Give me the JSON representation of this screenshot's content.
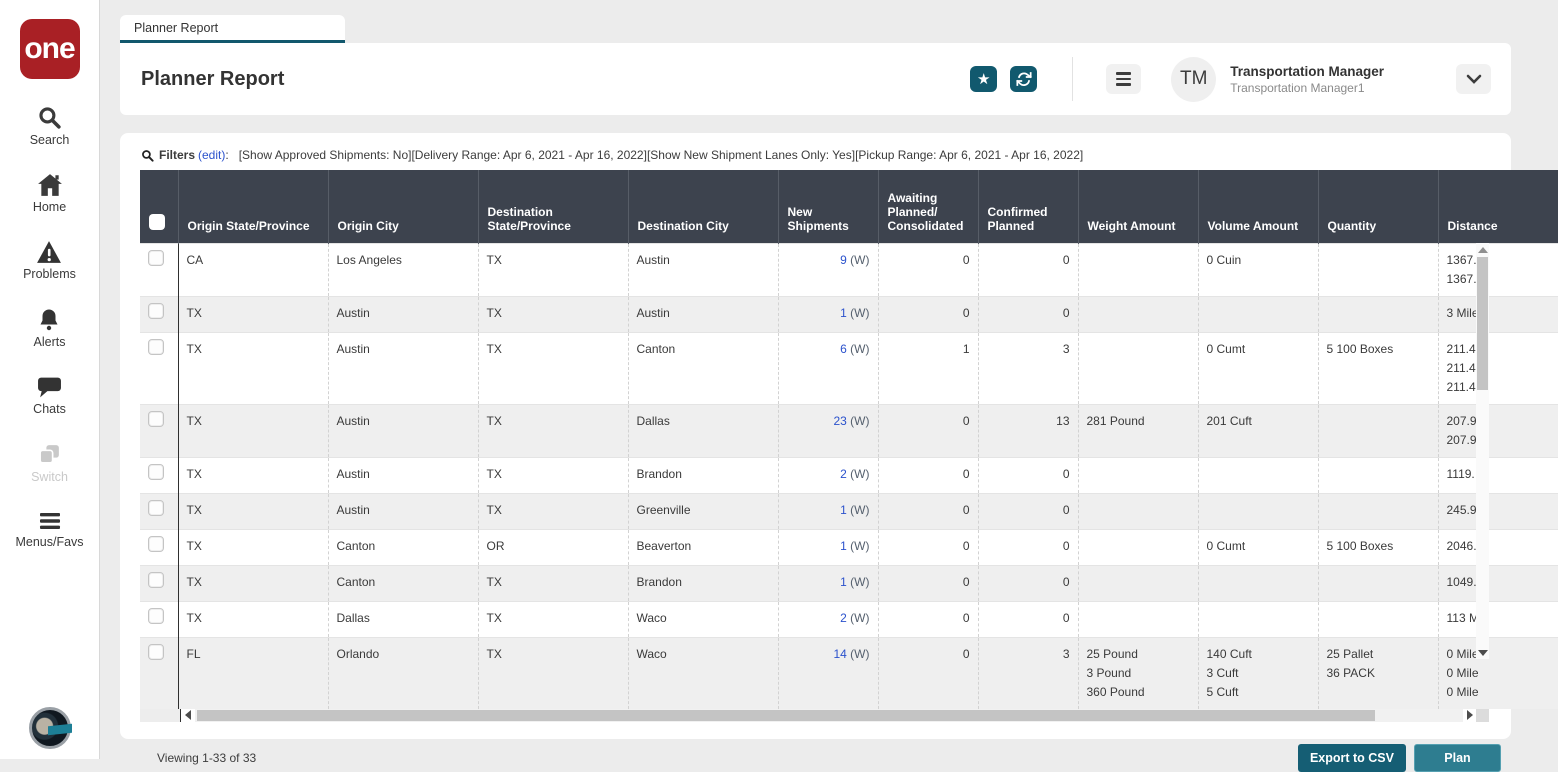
{
  "sidebar": {
    "logo_text": "one",
    "items": [
      {
        "id": "search",
        "label": "Search",
        "icon": "search-icon",
        "disabled": false
      },
      {
        "id": "home",
        "label": "Home",
        "icon": "home-icon",
        "disabled": false
      },
      {
        "id": "problems",
        "label": "Problems",
        "icon": "warning-icon",
        "disabled": false
      },
      {
        "id": "alerts",
        "label": "Alerts",
        "icon": "bell-icon",
        "disabled": false
      },
      {
        "id": "chats",
        "label": "Chats",
        "icon": "chat-icon",
        "disabled": false
      },
      {
        "id": "switch",
        "label": "Switch",
        "icon": "switch-icon",
        "disabled": true
      },
      {
        "id": "menusfavs",
        "label": "Menus/Favs",
        "icon": "hamburger-icon",
        "disabled": false
      }
    ]
  },
  "tab": {
    "label": "Planner Report"
  },
  "header": {
    "title": "Planner Report",
    "user": {
      "initials": "TM",
      "name": "Transportation Manager",
      "role": "Transportation Manager1"
    }
  },
  "filters": {
    "label": "Filters",
    "edit_link": "(edit)",
    "colon": ":",
    "summary": "[Show Approved Shipments: No][Delivery Range: Apr 6, 2021 - Apr 16, 2022][Show New Shipment Lanes Only: Yes][Pickup Range: Apr 6, 2021 - Apr 16, 2022]"
  },
  "table": {
    "columns": [
      "Origin State/Province",
      "Origin City",
      "Destination State/Province",
      "Destination City",
      "New Shipments",
      "Awaiting Planned/ Consolidated",
      "Confirmed Planned",
      "Weight Amount",
      "Volume Amount",
      "Quantity",
      "Distance"
    ],
    "link_suffix": "(W)",
    "rows": [
      {
        "origin_state": "CA",
        "origin_city": "Los Angeles",
        "dest_state": "TX",
        "dest_city": "Austin",
        "new_shipments": "9",
        "awaiting": "0",
        "confirmed": "0",
        "weight": [],
        "volume": [
          "0 Cuin"
        ],
        "quantity": [],
        "distance": [
          "1367.",
          "1367."
        ]
      },
      {
        "origin_state": "TX",
        "origin_city": "Austin",
        "dest_state": "TX",
        "dest_city": "Austin",
        "new_shipments": "1",
        "awaiting": "0",
        "confirmed": "0",
        "weight": [],
        "volume": [],
        "quantity": [],
        "distance": [
          "3 Mile"
        ]
      },
      {
        "origin_state": "TX",
        "origin_city": "Austin",
        "dest_state": "TX",
        "dest_city": "Canton",
        "new_shipments": "6",
        "awaiting": "1",
        "confirmed": "3",
        "weight": [],
        "volume": [
          "0 Cumt"
        ],
        "quantity": [
          "5 100 Boxes"
        ],
        "distance": [
          "211.4",
          "211.4",
          "211.4"
        ]
      },
      {
        "origin_state": "TX",
        "origin_city": "Austin",
        "dest_state": "TX",
        "dest_city": "Dallas",
        "new_shipments": "23",
        "awaiting": "0",
        "confirmed": "13",
        "weight": [
          "281 Pound"
        ],
        "volume": [
          "201 Cuft"
        ],
        "quantity": [],
        "distance": [
          "207.9",
          "207.9"
        ]
      },
      {
        "origin_state": "TX",
        "origin_city": "Austin",
        "dest_state": "TX",
        "dest_city": "Brandon",
        "new_shipments": "2",
        "awaiting": "0",
        "confirmed": "0",
        "weight": [],
        "volume": [],
        "quantity": [],
        "distance": [
          "1119."
        ]
      },
      {
        "origin_state": "TX",
        "origin_city": "Austin",
        "dest_state": "TX",
        "dest_city": "Greenville",
        "new_shipments": "1",
        "awaiting": "0",
        "confirmed": "0",
        "weight": [],
        "volume": [],
        "quantity": [],
        "distance": [
          "245.9"
        ]
      },
      {
        "origin_state": "TX",
        "origin_city": "Canton",
        "dest_state": "OR",
        "dest_city": "Beaverton",
        "new_shipments": "1",
        "awaiting": "0",
        "confirmed": "0",
        "weight": [],
        "volume": [
          "0 Cumt"
        ],
        "quantity": [
          "5 100 Boxes"
        ],
        "distance": [
          "2046."
        ]
      },
      {
        "origin_state": "TX",
        "origin_city": "Canton",
        "dest_state": "TX",
        "dest_city": "Brandon",
        "new_shipments": "1",
        "awaiting": "0",
        "confirmed": "0",
        "weight": [],
        "volume": [],
        "quantity": [],
        "distance": [
          "1049."
        ]
      },
      {
        "origin_state": "TX",
        "origin_city": "Dallas",
        "dest_state": "TX",
        "dest_city": "Waco",
        "new_shipments": "2",
        "awaiting": "0",
        "confirmed": "0",
        "weight": [],
        "volume": [],
        "quantity": [],
        "distance": [
          "113 M"
        ]
      },
      {
        "origin_state": "FL",
        "origin_city": "Orlando",
        "dest_state": "TX",
        "dest_city": "Waco",
        "new_shipments": "14",
        "awaiting": "0",
        "confirmed": "3",
        "weight": [
          "25 Pound",
          "3 Pound",
          "360 Pound"
        ],
        "volume": [
          "140 Cuft",
          "3 Cuft",
          "5 Cuft"
        ],
        "quantity": [
          "25 Pallet",
          "36 PACK"
        ],
        "distance": [
          "0 Mile",
          "0 Mile",
          "0 Mile"
        ]
      }
    ]
  },
  "footer": {
    "viewing": "Viewing 1-33 of 33",
    "export_label": "Export to CSV",
    "plan_label": "Plan"
  },
  "colors": {
    "accent_teal": "#11596e",
    "logo_red": "#a92025",
    "header_bg": "#3d434e",
    "link_blue": "#2b52cc",
    "export_button": "#155e74",
    "plan_button": "#2e7d90"
  }
}
